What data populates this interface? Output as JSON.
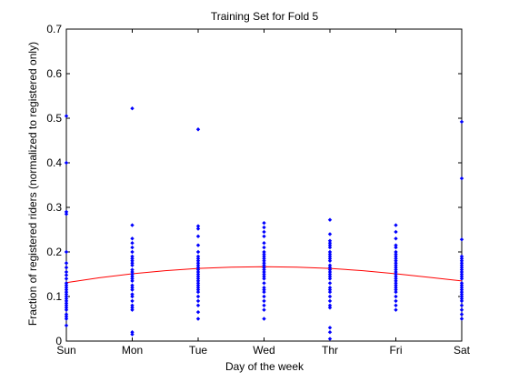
{
  "chart_data": {
    "type": "scatter",
    "title": "Training Set for Fold 5",
    "xlabel": "Day of the week",
    "ylabel": "Fraction of registered riders (normalized to registered only)",
    "categories": [
      "Sun",
      "Mon",
      "Tue",
      "Wed",
      "Thr",
      "Fri",
      "Sat"
    ],
    "ylim": [
      0,
      0.7
    ],
    "yticks": [
      0,
      0.1,
      0.2,
      0.3,
      0.4,
      0.5,
      0.6,
      0.7
    ],
    "grid": false,
    "legend": "none",
    "series": [
      {
        "kind": "points",
        "color": "#0000ff",
        "points": [
          [
            0,
            0.505
          ],
          [
            0,
            0.4
          ],
          [
            0,
            0.29
          ],
          [
            0,
            0.285
          ],
          [
            0,
            0.2
          ],
          [
            0,
            0.175
          ],
          [
            0,
            0.165
          ],
          [
            0,
            0.155
          ],
          [
            0,
            0.148
          ],
          [
            0,
            0.14
          ],
          [
            0,
            0.13
          ],
          [
            0,
            0.125
          ],
          [
            0,
            0.12
          ],
          [
            0,
            0.115
          ],
          [
            0,
            0.11
          ],
          [
            0,
            0.105
          ],
          [
            0,
            0.1
          ],
          [
            0,
            0.095
          ],
          [
            0,
            0.09
          ],
          [
            0,
            0.085
          ],
          [
            0,
            0.08
          ],
          [
            0,
            0.075
          ],
          [
            0,
            0.07
          ],
          [
            0,
            0.06
          ],
          [
            0,
            0.055
          ],
          [
            0,
            0.05
          ],
          [
            0,
            0.035
          ],
          [
            1,
            0.522
          ],
          [
            1,
            0.26
          ],
          [
            1,
            0.23
          ],
          [
            1,
            0.22
          ],
          [
            1,
            0.21
          ],
          [
            1,
            0.2
          ],
          [
            1,
            0.19
          ],
          [
            1,
            0.185
          ],
          [
            1,
            0.18
          ],
          [
            1,
            0.175
          ],
          [
            1,
            0.17
          ],
          [
            1,
            0.16
          ],
          [
            1,
            0.155
          ],
          [
            1,
            0.15
          ],
          [
            1,
            0.145
          ],
          [
            1,
            0.14
          ],
          [
            1,
            0.135
          ],
          [
            1,
            0.125
          ],
          [
            1,
            0.12
          ],
          [
            1,
            0.115
          ],
          [
            1,
            0.105
          ],
          [
            1,
            0.1
          ],
          [
            1,
            0.09
          ],
          [
            1,
            0.08
          ],
          [
            1,
            0.075
          ],
          [
            1,
            0.07
          ],
          [
            1,
            0.02
          ],
          [
            1,
            0.015
          ],
          [
            2,
            0.475
          ],
          [
            2,
            0.258
          ],
          [
            2,
            0.252
          ],
          [
            2,
            0.235
          ],
          [
            2,
            0.215
          ],
          [
            2,
            0.2
          ],
          [
            2,
            0.19
          ],
          [
            2,
            0.185
          ],
          [
            2,
            0.18
          ],
          [
            2,
            0.175
          ],
          [
            2,
            0.17
          ],
          [
            2,
            0.165
          ],
          [
            2,
            0.16
          ],
          [
            2,
            0.155
          ],
          [
            2,
            0.15
          ],
          [
            2,
            0.145
          ],
          [
            2,
            0.14
          ],
          [
            2,
            0.135
          ],
          [
            2,
            0.13
          ],
          [
            2,
            0.125
          ],
          [
            2,
            0.12
          ],
          [
            2,
            0.115
          ],
          [
            2,
            0.11
          ],
          [
            2,
            0.1
          ],
          [
            2,
            0.09
          ],
          [
            2,
            0.08
          ],
          [
            2,
            0.065
          ],
          [
            2,
            0.05
          ],
          [
            3,
            0.265
          ],
          [
            3,
            0.255
          ],
          [
            3,
            0.245
          ],
          [
            3,
            0.235
          ],
          [
            3,
            0.22
          ],
          [
            3,
            0.21
          ],
          [
            3,
            0.2
          ],
          [
            3,
            0.195
          ],
          [
            3,
            0.19
          ],
          [
            3,
            0.185
          ],
          [
            3,
            0.18
          ],
          [
            3,
            0.175
          ],
          [
            3,
            0.17
          ],
          [
            3,
            0.165
          ],
          [
            3,
            0.16
          ],
          [
            3,
            0.155
          ],
          [
            3,
            0.15
          ],
          [
            3,
            0.145
          ],
          [
            3,
            0.14
          ],
          [
            3,
            0.13
          ],
          [
            3,
            0.12
          ],
          [
            3,
            0.115
          ],
          [
            3,
            0.11
          ],
          [
            3,
            0.1
          ],
          [
            3,
            0.09
          ],
          [
            3,
            0.08
          ],
          [
            3,
            0.07
          ],
          [
            3,
            0.05
          ],
          [
            4,
            0.272
          ],
          [
            4,
            0.24
          ],
          [
            4,
            0.225
          ],
          [
            4,
            0.22
          ],
          [
            4,
            0.215
          ],
          [
            4,
            0.21
          ],
          [
            4,
            0.2
          ],
          [
            4,
            0.195
          ],
          [
            4,
            0.19
          ],
          [
            4,
            0.185
          ],
          [
            4,
            0.18
          ],
          [
            4,
            0.17
          ],
          [
            4,
            0.165
          ],
          [
            4,
            0.16
          ],
          [
            4,
            0.155
          ],
          [
            4,
            0.15
          ],
          [
            4,
            0.145
          ],
          [
            4,
            0.14
          ],
          [
            4,
            0.13
          ],
          [
            4,
            0.12
          ],
          [
            4,
            0.115
          ],
          [
            4,
            0.11
          ],
          [
            4,
            0.1
          ],
          [
            4,
            0.09
          ],
          [
            4,
            0.08
          ],
          [
            4,
            0.075
          ],
          [
            4,
            0.03
          ],
          [
            4,
            0.02
          ],
          [
            4,
            0.005
          ],
          [
            5,
            0.26
          ],
          [
            5,
            0.245
          ],
          [
            5,
            0.23
          ],
          [
            5,
            0.215
          ],
          [
            5,
            0.21
          ],
          [
            5,
            0.2
          ],
          [
            5,
            0.195
          ],
          [
            5,
            0.19
          ],
          [
            5,
            0.185
          ],
          [
            5,
            0.18
          ],
          [
            5,
            0.175
          ],
          [
            5,
            0.17
          ],
          [
            5,
            0.165
          ],
          [
            5,
            0.16
          ],
          [
            5,
            0.155
          ],
          [
            5,
            0.15
          ],
          [
            5,
            0.145
          ],
          [
            5,
            0.14
          ],
          [
            5,
            0.135
          ],
          [
            5,
            0.13
          ],
          [
            5,
            0.125
          ],
          [
            5,
            0.12
          ],
          [
            5,
            0.115
          ],
          [
            5,
            0.11
          ],
          [
            5,
            0.1
          ],
          [
            5,
            0.09
          ],
          [
            5,
            0.08
          ],
          [
            5,
            0.07
          ],
          [
            6,
            0.492
          ],
          [
            6,
            0.365
          ],
          [
            6,
            0.228
          ],
          [
            6,
            0.19
          ],
          [
            6,
            0.185
          ],
          [
            6,
            0.18
          ],
          [
            6,
            0.175
          ],
          [
            6,
            0.17
          ],
          [
            6,
            0.165
          ],
          [
            6,
            0.16
          ],
          [
            6,
            0.155
          ],
          [
            6,
            0.15
          ],
          [
            6,
            0.145
          ],
          [
            6,
            0.14
          ],
          [
            6,
            0.13
          ],
          [
            6,
            0.125
          ],
          [
            6,
            0.12
          ],
          [
            6,
            0.115
          ],
          [
            6,
            0.11
          ],
          [
            6,
            0.105
          ],
          [
            6,
            0.1
          ],
          [
            6,
            0.095
          ],
          [
            6,
            0.09
          ],
          [
            6,
            0.08
          ],
          [
            6,
            0.07
          ],
          [
            6,
            0.06
          ],
          [
            6,
            0.05
          ]
        ]
      },
      {
        "kind": "fit-curve",
        "color": "#ff0000",
        "x": [
          0,
          0.5,
          1,
          1.5,
          2,
          2.5,
          3,
          3.5,
          4,
          4.5,
          5,
          5.5,
          6
        ],
        "values": [
          0.131,
          0.142,
          0.151,
          0.158,
          0.163,
          0.166,
          0.167,
          0.166,
          0.163,
          0.158,
          0.151,
          0.143,
          0.135
        ]
      }
    ]
  }
}
